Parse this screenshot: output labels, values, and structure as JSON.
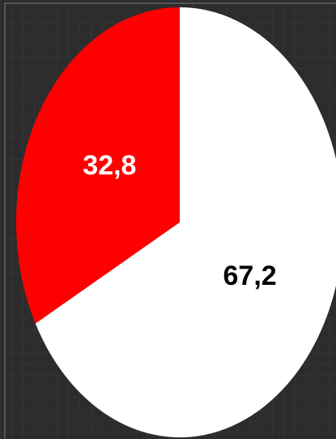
{
  "chart_data": {
    "type": "pie",
    "values": [
      32.8,
      67.2
    ],
    "value_labels": [
      "32,8",
      "67,2"
    ],
    "colors": [
      "#ff0000",
      "#ffffff"
    ],
    "label_colors": [
      "#ffffff",
      "#000000"
    ],
    "start": "top",
    "direction": "counterclockwise"
  }
}
